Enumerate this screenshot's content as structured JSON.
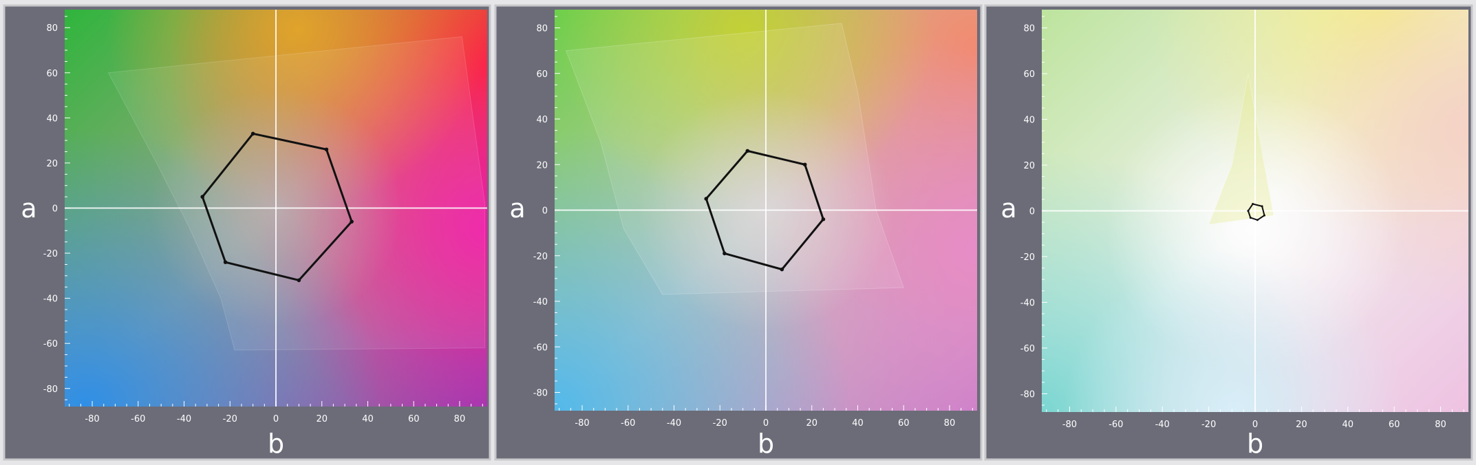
{
  "chart_data": [
    {
      "type": "scatter",
      "xlabel": "b",
      "ylabel": "a",
      "xlim": [
        -92,
        92
      ],
      "ylim": [
        -88,
        88
      ],
      "x_ticks": [
        -80,
        -60,
        -40,
        -20,
        0,
        20,
        40,
        60,
        80
      ],
      "y_ticks": [
        80,
        60,
        40,
        20,
        0,
        -20,
        -40,
        -60,
        -80
      ],
      "x_tick_labels": [
        "-80",
        "-60",
        "-40",
        "-20",
        "0",
        "20",
        "40",
        "60",
        "80"
      ],
      "y_tick_labels": [
        "80",
        "60",
        "40",
        "20",
        "0",
        "-20",
        "-40",
        "-60",
        "-80"
      ],
      "grid": false,
      "background": "full-color",
      "gamut_region": [
        [
          -73,
          60
        ],
        [
          81,
          76
        ],
        [
          91,
          2
        ],
        [
          91,
          -62
        ],
        [
          -18,
          -63
        ],
        [
          -24,
          -40
        ],
        [
          -38,
          -8
        ],
        [
          -52,
          20
        ]
      ],
      "hexagon": [
        [
          -10,
          33
        ],
        [
          22,
          26
        ],
        [
          33,
          -6
        ],
        [
          10,
          -32
        ],
        [
          -22,
          -24
        ],
        [
          -32,
          5
        ]
      ]
    },
    {
      "type": "scatter",
      "xlabel": "b",
      "ylabel": "a",
      "xlim": [
        -92,
        92
      ],
      "ylim": [
        -88,
        88
      ],
      "x_ticks": [
        -80,
        -60,
        -40,
        -20,
        0,
        20,
        40,
        60,
        80
      ],
      "y_ticks": [
        80,
        60,
        40,
        20,
        0,
        -20,
        -40,
        -60,
        -80
      ],
      "x_tick_labels": [
        "-80",
        "-60",
        "-40",
        "-20",
        "0",
        "20",
        "40",
        "60",
        "80"
      ],
      "y_tick_labels": [
        "80",
        "60",
        "40",
        "20",
        "0",
        "-20",
        "-40",
        "-60",
        "-80"
      ],
      "grid": false,
      "background": "lighter",
      "gamut_region": [
        [
          -87,
          70
        ],
        [
          33,
          82
        ],
        [
          40,
          52
        ],
        [
          48,
          0
        ],
        [
          60,
          -34
        ],
        [
          -45,
          -37
        ],
        [
          -62,
          -8
        ],
        [
          -72,
          30
        ]
      ],
      "hexagon": [
        [
          -8,
          26
        ],
        [
          17,
          20
        ],
        [
          25,
          -4
        ],
        [
          7,
          -26
        ],
        [
          -18,
          -19
        ],
        [
          -26,
          5
        ]
      ]
    },
    {
      "type": "scatter",
      "xlabel": "b",
      "ylabel": "a",
      "xlim": [
        -92,
        92
      ],
      "ylim": [
        -88,
        88
      ],
      "x_ticks": [
        -80,
        -60,
        -40,
        -20,
        0,
        20,
        40,
        60,
        80
      ],
      "y_ticks": [
        80,
        60,
        40,
        20,
        0,
        -20,
        -40,
        -60,
        -80
      ],
      "x_tick_labels": [
        "-80",
        "-60",
        "-40",
        "-20",
        "0",
        "20",
        "40",
        "60",
        "80"
      ],
      "y_tick_labels": [
        "80",
        "60",
        "40",
        "20",
        "0",
        "-20",
        "-40",
        "-60",
        "-80"
      ],
      "grid": false,
      "background": "pastel",
      "gamut_region": [
        [
          -3,
          60
        ],
        [
          4,
          20
        ],
        [
          8,
          -2
        ],
        [
          -20,
          -6
        ],
        [
          -10,
          20
        ]
      ],
      "hexagon": [
        [
          -1,
          3
        ],
        [
          3,
          2
        ],
        [
          4,
          -2
        ],
        [
          1,
          -4
        ],
        [
          -2,
          -3
        ],
        [
          -3,
          0
        ]
      ]
    }
  ]
}
